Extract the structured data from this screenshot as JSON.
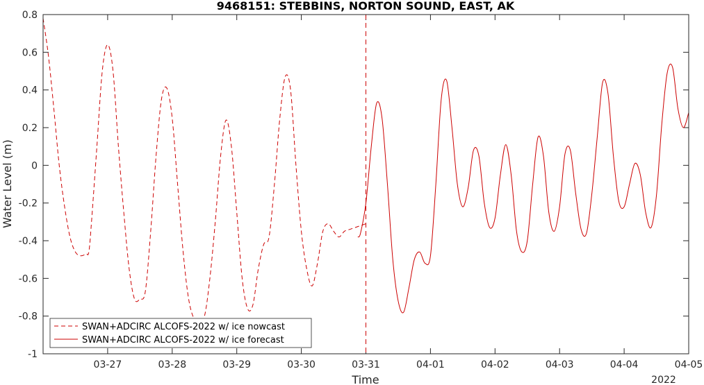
{
  "chart_data": {
    "type": "line",
    "title": "9468151: STEBBINS, NORTON SOUND, EAST, AK",
    "xlabel": "Time",
    "ylabel": "Water Level (m)",
    "year_label": "2022",
    "xlim": [
      "2022-03-26T00:00",
      "2022-04-05T00:00"
    ],
    "ylim": [
      -1,
      0.8
    ],
    "x_ticks": [
      {
        "label": "03-27",
        "x": "2022-03-27T00:00"
      },
      {
        "label": "03-28",
        "x": "2022-03-28T00:00"
      },
      {
        "label": "03-29",
        "x": "2022-03-29T00:00"
      },
      {
        "label": "03-30",
        "x": "2022-03-30T00:00"
      },
      {
        "label": "03-31",
        "x": "2022-03-31T00:00"
      },
      {
        "label": "04-01",
        "x": "2022-04-01T00:00"
      },
      {
        "label": "04-02",
        "x": "2022-04-02T00:00"
      },
      {
        "label": "04-03",
        "x": "2022-04-03T00:00"
      },
      {
        "label": "04-04",
        "x": "2022-04-04T00:00"
      },
      {
        "label": "04-05",
        "x": "2022-04-05T00:00"
      }
    ],
    "y_ticks": [
      {
        "label": "-1",
        "y": -1
      },
      {
        "label": "-0.8",
        "y": -0.8
      },
      {
        "label": "-0.6",
        "y": -0.6
      },
      {
        "label": "-0.4",
        "y": -0.4
      },
      {
        "label": "-0.2",
        "y": -0.2
      },
      {
        "label": "0",
        "y": 0
      },
      {
        "label": "0.2",
        "y": 0.2
      },
      {
        "label": "0.4",
        "y": 0.4
      },
      {
        "label": "0.6",
        "y": 0.6
      },
      {
        "label": "0.8",
        "y": 0.8
      }
    ],
    "grid": false,
    "legend_position": "bottom-left",
    "nowcast_end_marker": "2022-03-31T00:00",
    "series": [
      {
        "name": "SWAN+ADCIRC ALCOFS-2022 w/ ice nowcast",
        "style": "dashed",
        "color": "#cc0000",
        "x": [
          "2022-03-26T00:00",
          "2022-03-26T02:00",
          "2022-03-26T04:00",
          "2022-03-26T06:00",
          "2022-03-26T08:00",
          "2022-03-26T10:00",
          "2022-03-26T12:00",
          "2022-03-26T14:00",
          "2022-03-26T16:00",
          "2022-03-26T17:00",
          "2022-03-26T18:00",
          "2022-03-26T20:00",
          "2022-03-26T22:00",
          "2022-03-27T00:00",
          "2022-03-27T02:00",
          "2022-03-27T04:00",
          "2022-03-27T06:00",
          "2022-03-27T08:00",
          "2022-03-27T10:00",
          "2022-03-27T12:00",
          "2022-03-27T14:00",
          "2022-03-27T16:00",
          "2022-03-27T18:00",
          "2022-03-27T20:00",
          "2022-03-27T22:00",
          "2022-03-28T00:00",
          "2022-03-28T02:00",
          "2022-03-28T04:00",
          "2022-03-28T06:00",
          "2022-03-28T08:00",
          "2022-03-28T10:00",
          "2022-03-28T12:00",
          "2022-03-28T14:00",
          "2022-03-28T16:00",
          "2022-03-28T18:00",
          "2022-03-28T20:00",
          "2022-03-28T22:00",
          "2022-03-29T00:00",
          "2022-03-29T02:00",
          "2022-03-29T04:00",
          "2022-03-29T06:00",
          "2022-03-29T08:00",
          "2022-03-29T10:00",
          "2022-03-29T12:00",
          "2022-03-29T14:00",
          "2022-03-29T16:00",
          "2022-03-29T18:00",
          "2022-03-29T20:00",
          "2022-03-29T22:00",
          "2022-03-30T00:00",
          "2022-03-30T02:00",
          "2022-03-30T04:00",
          "2022-03-30T06:00",
          "2022-03-30T08:00",
          "2022-03-30T10:00",
          "2022-03-30T12:00",
          "2022-03-30T14:00",
          "2022-03-30T16:00",
          "2022-03-30T18:00",
          "2022-03-30T20:00",
          "2022-03-30T22:00",
          "2022-03-31T00:00"
        ],
        "y": [
          0.78,
          0.58,
          0.3,
          0.0,
          -0.22,
          -0.38,
          -0.46,
          -0.48,
          -0.47,
          -0.46,
          -0.3,
          0.1,
          0.5,
          0.64,
          0.5,
          0.1,
          -0.25,
          -0.55,
          -0.71,
          -0.71,
          -0.67,
          -0.35,
          0.05,
          0.35,
          0.41,
          0.25,
          -0.1,
          -0.45,
          -0.7,
          -0.81,
          -0.82,
          -0.8,
          -0.6,
          -0.3,
          0.05,
          0.24,
          0.1,
          -0.25,
          -0.6,
          -0.76,
          -0.74,
          -0.55,
          -0.42,
          -0.38,
          -0.1,
          0.25,
          0.47,
          0.4,
          0.0,
          -0.35,
          -0.55,
          -0.64,
          -0.52,
          -0.35,
          -0.31,
          -0.35,
          -0.38,
          -0.35,
          -0.34,
          -0.33,
          -0.32,
          -0.31
        ]
      },
      {
        "name": "SWAN+ADCIRC ALCOFS-2022 w/ ice forecast",
        "style": "solid",
        "color": "#cc0000",
        "x": [
          "2022-03-30T21:00",
          "2022-03-30T22:00",
          "2022-03-31T00:00",
          "2022-03-31T02:00",
          "2022-03-31T04:00",
          "2022-03-31T06:00",
          "2022-03-31T08:00",
          "2022-03-31T10:00",
          "2022-03-31T12:00",
          "2022-03-31T14:00",
          "2022-03-31T16:00",
          "2022-03-31T18:00",
          "2022-03-31T20:00",
          "2022-03-31T22:00",
          "2022-04-01T00:00",
          "2022-04-01T02:00",
          "2022-04-01T04:00",
          "2022-04-01T06:00",
          "2022-04-01T08:00",
          "2022-04-01T10:00",
          "2022-04-01T12:00",
          "2022-04-01T14:00",
          "2022-04-01T16:00",
          "2022-04-01T18:00",
          "2022-04-01T20:00",
          "2022-04-01T22:00",
          "2022-04-02T00:00",
          "2022-04-02T02:00",
          "2022-04-02T04:00",
          "2022-04-02T06:00",
          "2022-04-02T08:00",
          "2022-04-02T10:00",
          "2022-04-02T12:00",
          "2022-04-02T14:00",
          "2022-04-02T16:00",
          "2022-04-02T18:00",
          "2022-04-02T20:00",
          "2022-04-02T22:00",
          "2022-04-03T00:00",
          "2022-04-03T02:00",
          "2022-04-03T04:00",
          "2022-04-03T06:00",
          "2022-04-03T08:00",
          "2022-04-03T10:00",
          "2022-04-03T12:00",
          "2022-04-03T14:00",
          "2022-04-03T16:00",
          "2022-04-03T18:00",
          "2022-04-03T20:00",
          "2022-04-03T22:00",
          "2022-04-04T00:00",
          "2022-04-04T02:00",
          "2022-04-04T04:00",
          "2022-04-04T06:00",
          "2022-04-04T08:00",
          "2022-04-04T10:00",
          "2022-04-04T12:00",
          "2022-04-04T14:00",
          "2022-04-04T16:00",
          "2022-04-04T18:00",
          "2022-04-04T20:00",
          "2022-04-04T22:00",
          "2022-04-05T00:00"
        ],
        "y": [
          -0.38,
          -0.36,
          -0.2,
          0.1,
          0.33,
          0.25,
          -0.1,
          -0.5,
          -0.72,
          -0.78,
          -0.65,
          -0.5,
          -0.46,
          -0.52,
          -0.48,
          -0.1,
          0.35,
          0.45,
          0.2,
          -0.1,
          -0.22,
          -0.12,
          0.08,
          0.05,
          -0.2,
          -0.33,
          -0.28,
          -0.05,
          0.11,
          -0.05,
          -0.35,
          -0.46,
          -0.4,
          -0.1,
          0.15,
          0.05,
          -0.25,
          -0.35,
          -0.22,
          0.06,
          0.08,
          -0.15,
          -0.34,
          -0.36,
          -0.15,
          0.15,
          0.44,
          0.38,
          0.05,
          -0.19,
          -0.22,
          -0.1,
          0.01,
          -0.05,
          -0.25,
          -0.33,
          -0.16,
          0.22,
          0.49,
          0.52,
          0.3,
          0.2,
          0.28
        ]
      }
    ]
  }
}
